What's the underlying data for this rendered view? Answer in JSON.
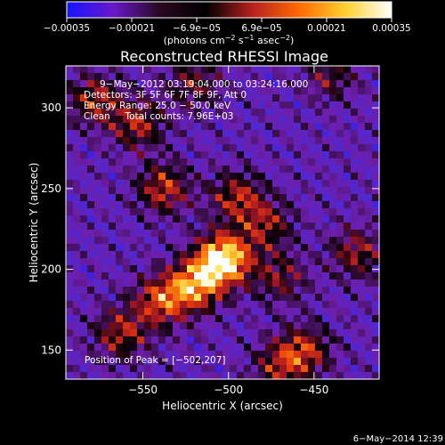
{
  "chart_data": {
    "type": "heatmap",
    "title": "Reconstructed RHESSI Image",
    "xlabel": "Heliocentric X (arcsec)",
    "ylabel": "Heliocentric Y (arcsec)",
    "xlim": [
      -595,
      -412
    ],
    "ylim": [
      132,
      326
    ],
    "x_ticks": [
      {
        "value": -550,
        "label": "−550"
      },
      {
        "value": -500,
        "label": "−500"
      },
      {
        "value": -450,
        "label": "−450"
      }
    ],
    "y_ticks": [
      {
        "value": 150,
        "label": "150"
      },
      {
        "value": 200,
        "label": "200"
      },
      {
        "value": 250,
        "label": "250"
      },
      {
        "value": 300,
        "label": "300"
      }
    ],
    "colorbar": {
      "min": -0.00035,
      "max": 0.00035,
      "tick_labels": [
        "−0.00035",
        "−0.00021",
        "−6.9e−05",
        "6.9e−05",
        "0.00021",
        "0.00035"
      ],
      "colors": [
        "#1515ff",
        "#6a18c8",
        "#2a0820",
        "#000000",
        "#b82020",
        "#ff6a00",
        "#ffd030",
        "#ffffff"
      ]
    },
    "annotations": [
      "9−May−2012 03:19:04.000 to 03:24:16.000",
      "Detectors: 3F 5F 6F 7F 8F 9F, Att 0",
      "Energy Range: 25.0 − 50.0 keV",
      "Clean     Total counts: 7.96E+03"
    ],
    "peak_label": "Position of Peak = [−502,207]",
    "peak": [
      -502,
      207
    ],
    "sources": [
      {
        "x": -503,
        "y": 206,
        "amp": 1.0
      },
      {
        "x": -520,
        "y": 190,
        "amp": 0.7
      },
      {
        "x": -540,
        "y": 180,
        "amp": 0.55
      },
      {
        "x": -563,
        "y": 160,
        "amp": 0.45
      },
      {
        "x": -578,
        "y": 305,
        "amp": 0.45
      },
      {
        "x": -553,
        "y": 290,
        "amp": 0.45
      },
      {
        "x": -538,
        "y": 250,
        "amp": 0.5
      },
      {
        "x": -495,
        "y": 245,
        "amp": 0.45
      },
      {
        "x": -478,
        "y": 228,
        "amp": 0.4
      },
      {
        "x": -470,
        "y": 195,
        "amp": 0.35
      },
      {
        "x": -455,
        "y": 150,
        "amp": 0.45
      },
      {
        "x": -470,
        "y": 140,
        "amp": 0.4
      },
      {
        "x": -425,
        "y": 210,
        "amp": 0.4
      },
      {
        "x": -520,
        "y": 315,
        "amp": 0.35
      },
      {
        "x": -440,
        "y": 320,
        "amp": 0.3
      }
    ]
  },
  "footer": {
    "timestamp": "6−May−2014 12:39"
  }
}
